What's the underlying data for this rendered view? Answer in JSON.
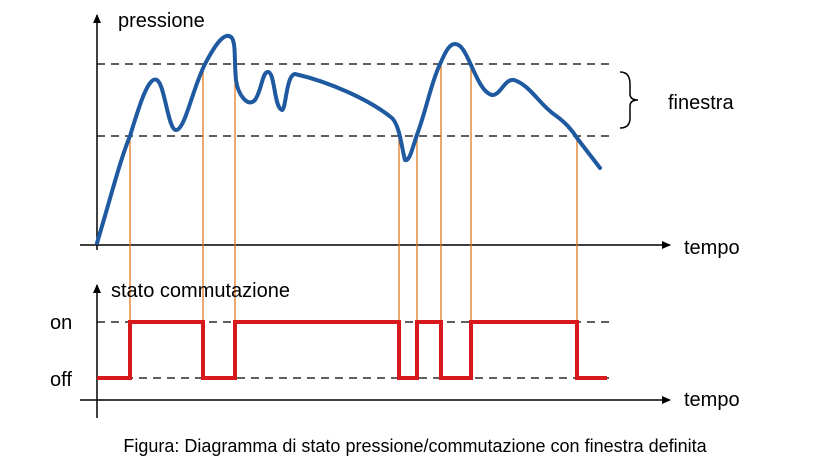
{
  "diagram": {
    "pressure_axis": "pressione",
    "time_axis_top": "tempo",
    "window": "finestra",
    "switch_axis": "stato commutazione",
    "on": "on",
    "off": "off",
    "time_axis_bottom": "tempo"
  },
  "caption": "Figura: Diagramma di stato pressione/commutazione con finestra definita"
}
